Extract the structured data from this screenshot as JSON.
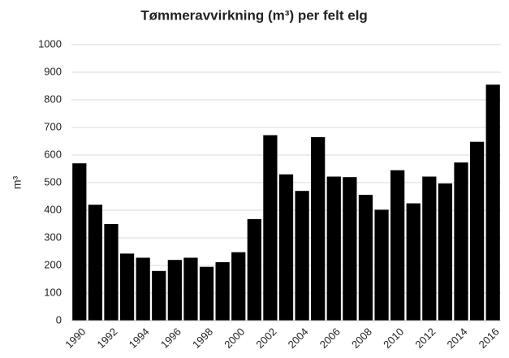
{
  "chart_data": {
    "type": "bar",
    "title": "Tømmeravvirkning (m³) per felt elg",
    "y_label": "m³",
    "categories": [
      "1990",
      null,
      "1992",
      null,
      "1994",
      null,
      "1996",
      null,
      "1998",
      null,
      "2000",
      null,
      "2002",
      null,
      "2004",
      null,
      "2006",
      null,
      "2008",
      null,
      "2010",
      null,
      "2012",
      null,
      "2014",
      null,
      "2016"
    ],
    "values": [
      570,
      420,
      350,
      243,
      228,
      180,
      220,
      228,
      195,
      212,
      248,
      368,
      672,
      530,
      470,
      665,
      522,
      520,
      456,
      402,
      545,
      425,
      522,
      497,
      573,
      648,
      855
    ],
    "color": "#000000",
    "ylim": [
      0,
      1000
    ],
    "yticks": [
      0,
      100,
      200,
      300,
      400,
      500,
      600,
      700,
      800,
      900,
      1000
    ],
    "grid": true
  }
}
